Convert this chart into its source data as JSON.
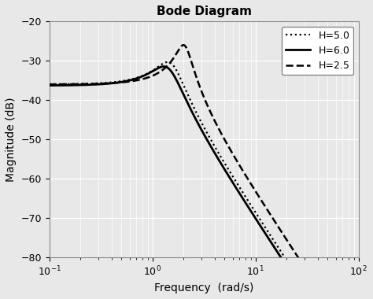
{
  "title": "Bode Diagram",
  "xlabel": "Frequency  (rad/s)",
  "ylabel": "Magnitude (dB)",
  "xlim": [
    0.1,
    100
  ],
  "ylim": [
    -80,
    -20
  ],
  "yticks": [
    -80,
    -70,
    -60,
    -50,
    -40,
    -30,
    -20
  ],
  "background_color": "#e8e8e8",
  "grid_color": "#ffffff",
  "legend": [
    {
      "label": "H=5.0",
      "linestyle": "dotted",
      "color": "#000000",
      "linewidth": 1.6
    },
    {
      "label": "H=6.0",
      "linestyle": "solid",
      "color": "#000000",
      "linewidth": 2.0
    },
    {
      "label": "H=2.5",
      "linestyle": "dashed",
      "color": "#000000",
      "linewidth": 1.8
    }
  ],
  "curves": {
    "H50": {
      "wn": 1.52,
      "zeta": 0.27,
      "dc_db": -36.0
    },
    "H60": {
      "wn": 1.42,
      "zeta": 0.3,
      "dc_db": -36.3
    },
    "H25": {
      "wn": 2.05,
      "zeta": 0.16,
      "dc_db": -36.0
    }
  },
  "title_fontsize": 11,
  "label_fontsize": 10,
  "tick_fontsize": 9
}
